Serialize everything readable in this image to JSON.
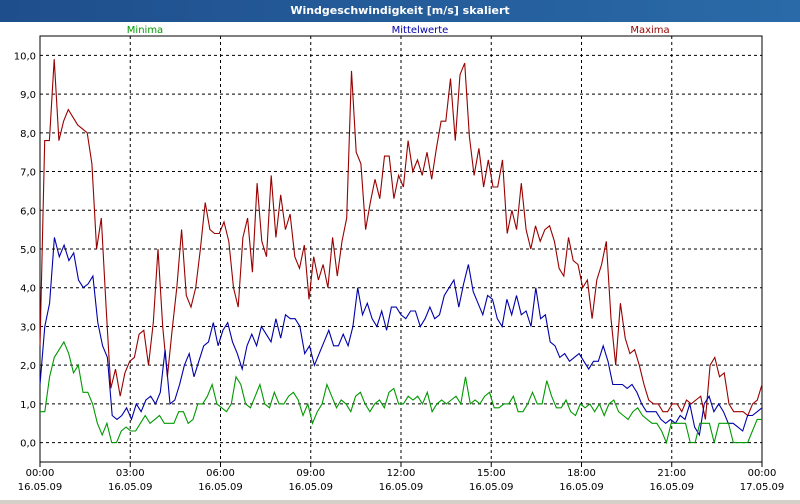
{
  "window": {
    "title": "Windgeschwindigkeit [m/s] skaliert"
  },
  "legend": {
    "min": "Minima",
    "mean": "Mittelwerte",
    "max": "Maxima"
  },
  "colors": {
    "min": "#009900",
    "mean": "#0000aa",
    "max": "#990000",
    "grid": "#000000"
  },
  "chart_data": {
    "type": "line",
    "title": "Windgeschwindigkeit [m/s] skaliert",
    "xlabel": "",
    "ylabel": "",
    "ylim": [
      -0.5,
      10.5
    ],
    "yticks": [
      "0,0",
      "1,0",
      "2,0",
      "3,0",
      "4,0",
      "5,0",
      "6,0",
      "7,0",
      "8,0",
      "9,0",
      "10,0"
    ],
    "xticks": [
      {
        "time": "00:00",
        "date": "16.05.09"
      },
      {
        "time": "03:00",
        "date": "16.05.09"
      },
      {
        "time": "06:00",
        "date": "16.05.09"
      },
      {
        "time": "09:00",
        "date": "16.05.09"
      },
      {
        "time": "12:00",
        "date": "16.05.09"
      },
      {
        "time": "15:00",
        "date": "16.05.09"
      },
      {
        "time": "18:00",
        "date": "16.05.09"
      },
      {
        "time": "21:00",
        "date": "16.05.09"
      },
      {
        "time": "00:00",
        "date": "17.05.09"
      }
    ],
    "grid": true,
    "series": [
      {
        "name": "Maxima",
        "color": "#990000",
        "values": [
          2.5,
          7.8,
          7.8,
          9.9,
          7.8,
          8.3,
          8.6,
          8.4,
          8.2,
          8.1,
          8.0,
          7.2,
          5.0,
          5.8,
          3.5,
          1.4,
          1.9,
          1.2,
          1.8,
          2.1,
          2.2,
          2.8,
          2.9,
          2.0,
          3.1,
          5.0,
          3.0,
          1.7,
          2.9,
          4.0,
          5.5,
          3.8,
          3.5,
          4.0,
          5.0,
          6.2,
          5.5,
          5.4,
          5.4,
          5.7,
          5.2,
          4.0,
          3.5,
          5.3,
          5.8,
          4.4,
          6.7,
          5.2,
          4.8,
          6.9,
          5.3,
          6.4,
          5.5,
          5.9,
          4.8,
          4.5,
          5.1,
          3.7,
          4.8,
          4.2,
          4.6,
          4.0,
          5.3,
          4.3,
          5.2,
          5.8,
          9.6,
          7.5,
          7.2,
          5.5,
          6.2,
          6.8,
          6.3,
          7.4,
          7.4,
          6.3,
          6.9,
          6.6,
          7.8,
          7.0,
          7.3,
          6.9,
          7.5,
          6.8,
          7.6,
          8.3,
          8.3,
          9.4,
          7.8,
          9.5,
          9.8,
          7.9,
          6.9,
          7.6,
          6.6,
          7.3,
          6.6,
          6.6,
          7.3,
          5.4,
          6.0,
          5.5,
          6.7,
          5.5,
          5.0,
          5.6,
          5.2,
          5.5,
          5.6,
          5.2,
          4.5,
          4.3,
          5.3,
          4.7,
          4.6,
          4.0,
          4.2,
          3.2,
          4.2,
          4.6,
          5.2,
          3.2,
          2.0,
          3.6,
          2.7,
          2.3,
          2.4,
          2.0,
          1.5,
          1.1,
          1.0,
          1.0,
          0.8,
          0.8,
          1.0,
          1.0,
          0.8,
          1.1,
          1.0,
          1.1,
          1.2,
          0.6,
          2.0,
          2.2,
          1.7,
          1.8,
          1.0,
          0.8,
          0.8,
          0.8,
          0.7,
          1.0,
          1.1,
          1.5
        ]
      },
      {
        "name": "Mittelwerte",
        "color": "#0000aa",
        "values": [
          1.5,
          3.0,
          3.6,
          5.3,
          4.8,
          5.1,
          4.7,
          4.9,
          4.2,
          4.0,
          4.1,
          4.3,
          3.1,
          2.5,
          2.2,
          0.7,
          0.6,
          0.7,
          0.9,
          0.6,
          1.0,
          0.8,
          1.1,
          1.2,
          1.0,
          1.3,
          2.4,
          1.0,
          1.1,
          1.5,
          2.0,
          2.3,
          1.7,
          2.1,
          2.5,
          2.6,
          3.1,
          2.5,
          2.9,
          3.1,
          2.6,
          2.3,
          1.9,
          2.5,
          2.8,
          2.5,
          3.0,
          2.8,
          2.6,
          3.2,
          2.7,
          3.3,
          3.2,
          3.2,
          3.0,
          2.3,
          2.5,
          2.0,
          2.3,
          2.6,
          2.9,
          2.5,
          2.5,
          2.8,
          2.5,
          3.0,
          4.0,
          3.3,
          3.6,
          3.2,
          3.0,
          3.4,
          2.9,
          3.5,
          3.5,
          3.3,
          3.2,
          3.4,
          3.4,
          3.0,
          3.2,
          3.5,
          3.2,
          3.3,
          3.8,
          4.0,
          4.2,
          3.5,
          4.1,
          4.6,
          3.9,
          3.6,
          3.3,
          3.8,
          3.7,
          3.2,
          3.0,
          3.7,
          3.3,
          3.8,
          3.3,
          3.4,
          3.0,
          4.0,
          3.2,
          3.3,
          2.6,
          2.5,
          2.2,
          2.3,
          2.1,
          2.2,
          2.3,
          2.1,
          1.9,
          2.1,
          2.1,
          2.5,
          2.1,
          1.5,
          1.5,
          1.5,
          1.4,
          1.5,
          1.3,
          1.0,
          0.8,
          0.8,
          0.8,
          0.6,
          0.5,
          0.6,
          0.5,
          0.7,
          0.6,
          1.0,
          0.4,
          0.2,
          1.0,
          1.2,
          0.8,
          1.0,
          0.8,
          0.5,
          0.5,
          0.4,
          0.3,
          0.7,
          0.7,
          0.8,
          0.9
        ]
      },
      {
        "name": "Minima",
        "color": "#009900",
        "values": [
          0.8,
          0.8,
          1.7,
          2.2,
          2.4,
          2.6,
          2.3,
          1.8,
          2.0,
          1.3,
          1.3,
          1.0,
          0.5,
          0.2,
          0.5,
          0.0,
          0.0,
          0.3,
          0.4,
          0.3,
          0.3,
          0.5,
          0.7,
          0.5,
          0.6,
          0.7,
          0.5,
          0.5,
          0.5,
          0.8,
          0.8,
          0.5,
          0.6,
          1.0,
          1.0,
          1.2,
          1.5,
          1.0,
          0.9,
          0.8,
          1.0,
          1.7,
          1.5,
          1.0,
          0.9,
          1.2,
          1.5,
          1.0,
          0.9,
          1.3,
          1.0,
          1.0,
          1.2,
          1.3,
          1.1,
          0.7,
          1.0,
          0.5,
          0.8,
          1.0,
          1.5,
          1.2,
          0.9,
          1.1,
          1.0,
          0.8,
          1.2,
          1.3,
          1.0,
          0.8,
          1.0,
          1.1,
          0.9,
          1.3,
          1.4,
          1.0,
          1.0,
          1.2,
          1.1,
          1.2,
          1.0,
          1.3,
          0.8,
          1.0,
          1.1,
          1.0,
          1.1,
          1.2,
          1.0,
          1.7,
          1.0,
          1.1,
          1.0,
          1.2,
          1.3,
          0.9,
          0.9,
          1.0,
          1.0,
          1.2,
          0.8,
          0.8,
          1.0,
          1.3,
          1.0,
          1.0,
          1.6,
          1.2,
          0.9,
          0.9,
          1.1,
          0.8,
          0.7,
          1.0,
          0.9,
          1.0,
          0.8,
          1.0,
          0.7,
          1.0,
          1.1,
          0.8,
          0.7,
          0.6,
          0.8,
          0.9,
          0.7,
          0.6,
          0.5,
          0.5,
          0.3,
          0.0,
          0.5,
          0.5,
          0.5,
          0.5,
          0.0,
          0.0,
          0.5,
          0.5,
          0.5,
          0.0,
          0.5,
          0.5,
          0.5,
          0.0,
          0.0,
          0.0,
          0.0,
          0.3,
          0.6,
          0.6
        ]
      }
    ]
  }
}
